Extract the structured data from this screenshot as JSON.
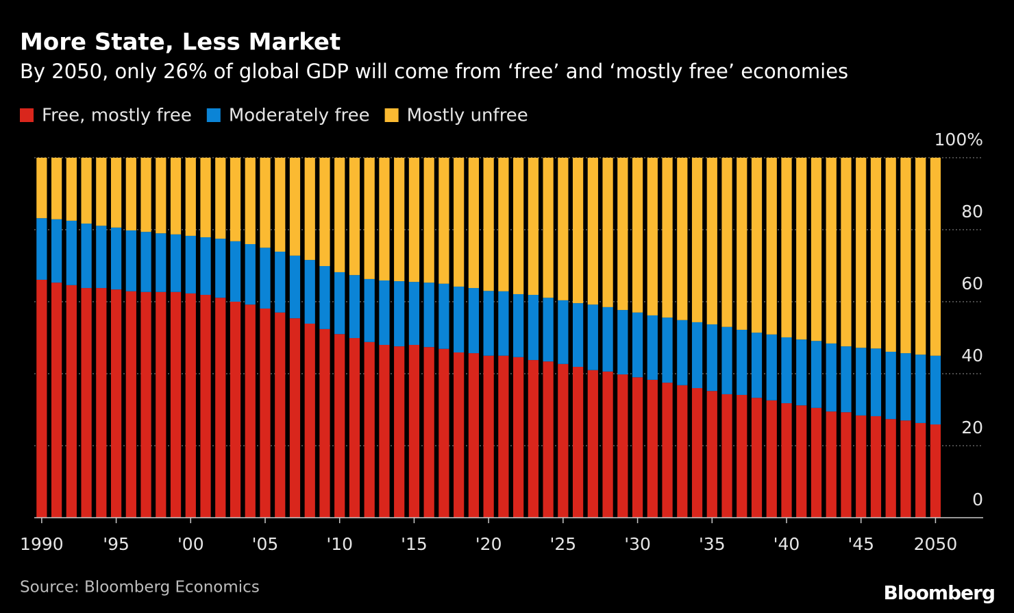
{
  "chart_data": {
    "type": "stacked_bar",
    "title": "More State, Less Market",
    "subtitle": "By 2050, only 26% of global GDP will come from ‘free’ and ‘mostly free’ economies",
    "source": "Source: Bloomberg Economics",
    "brand": "Bloomberg",
    "x": [
      1990,
      1991,
      1992,
      1993,
      1994,
      1995,
      1996,
      1997,
      1998,
      1999,
      2000,
      2001,
      2002,
      2003,
      2004,
      2005,
      2006,
      2007,
      2008,
      2009,
      2010,
      2011,
      2012,
      2013,
      2014,
      2015,
      2016,
      2017,
      2018,
      2019,
      2020,
      2021,
      2022,
      2023,
      2024,
      2025,
      2026,
      2027,
      2028,
      2029,
      2030,
      2031,
      2032,
      2033,
      2034,
      2035,
      2036,
      2037,
      2038,
      2039,
      2040,
      2041,
      2042,
      2043,
      2044,
      2045,
      2046,
      2047,
      2048,
      2049,
      2050
    ],
    "series": [
      {
        "name": "Free, mostly free",
        "color": "#d9261c",
        "values": [
          66.1,
          65.3,
          64.6,
          63.8,
          63.8,
          63.4,
          62.9,
          62.7,
          62.7,
          62.7,
          62.3,
          61.9,
          61.1,
          60.0,
          59.2,
          58.1,
          57.0,
          55.4,
          53.9,
          52.4,
          51.0,
          49.9,
          48.8,
          48.0,
          47.6,
          48.0,
          47.4,
          46.9,
          45.9,
          45.7,
          45.0,
          45.0,
          44.6,
          43.8,
          43.4,
          42.7,
          41.9,
          41.0,
          40.6,
          39.8,
          39.0,
          38.3,
          37.5,
          36.8,
          36.0,
          35.2,
          34.3,
          34.1,
          33.3,
          32.6,
          31.8,
          31.2,
          30.5,
          29.5,
          29.3,
          28.4,
          28.2,
          27.4,
          27.0,
          26.3,
          25.9
        ]
      },
      {
        "name": "Moderately free",
        "color": "#0b84d6",
        "values": [
          17.1,
          17.6,
          17.9,
          17.9,
          17.3,
          17.2,
          16.9,
          16.7,
          16.3,
          16.0,
          16.0,
          16.0,
          16.4,
          16.8,
          16.8,
          16.9,
          16.9,
          17.4,
          17.7,
          17.5,
          17.2,
          17.5,
          17.5,
          17.9,
          18.1,
          17.5,
          17.9,
          18.1,
          18.3,
          18.1,
          18.0,
          17.9,
          17.5,
          18.1,
          17.7,
          17.7,
          17.7,
          18.2,
          17.9,
          17.9,
          18.0,
          17.9,
          18.1,
          18.1,
          18.3,
          18.5,
          18.7,
          18.1,
          18.1,
          18.3,
          18.3,
          18.3,
          18.6,
          18.9,
          18.3,
          18.8,
          18.8,
          18.7,
          18.7,
          19.0,
          19.1
        ]
      },
      {
        "name": "Mostly unfree",
        "color": "#fbba32",
        "values": [
          16.8,
          17.1,
          17.5,
          18.3,
          18.9,
          19.4,
          20.2,
          20.6,
          21.0,
          21.3,
          21.7,
          22.1,
          22.5,
          23.2,
          24.0,
          25.0,
          26.1,
          27.2,
          28.4,
          30.1,
          31.8,
          32.6,
          33.7,
          34.1,
          34.3,
          34.5,
          34.7,
          35.0,
          35.8,
          36.2,
          37.0,
          37.1,
          37.9,
          38.1,
          38.9,
          39.6,
          40.4,
          40.8,
          41.5,
          42.3,
          43.0,
          43.8,
          44.4,
          45.1,
          45.7,
          46.3,
          47.0,
          47.8,
          48.6,
          49.1,
          49.9,
          50.5,
          50.9,
          51.6,
          52.4,
          52.8,
          53.0,
          53.9,
          54.3,
          54.7,
          55.0
        ]
      }
    ],
    "xlim": [
      1989.5,
      2053.2
    ],
    "xticks": [
      {
        "value": 1990,
        "label": "1990"
      },
      {
        "value": 1995,
        "label": "'95"
      },
      {
        "value": 2000,
        "label": "'00"
      },
      {
        "value": 2005,
        "label": "'05"
      },
      {
        "value": 2010,
        "label": "'10"
      },
      {
        "value": 2015,
        "label": "'15"
      },
      {
        "value": 2020,
        "label": "'20"
      },
      {
        "value": 2025,
        "label": "'25"
      },
      {
        "value": 2030,
        "label": "'30"
      },
      {
        "value": 2035,
        "label": "'35"
      },
      {
        "value": 2040,
        "label": "'40"
      },
      {
        "value": 2045,
        "label": "'45"
      },
      {
        "value": 2050,
        "label": "2050"
      }
    ],
    "ylim": [
      0,
      100
    ],
    "yticks": [
      {
        "value": 100,
        "label": "100%"
      },
      80,
      60,
      40,
      20,
      0
    ],
    "grid": true
  }
}
